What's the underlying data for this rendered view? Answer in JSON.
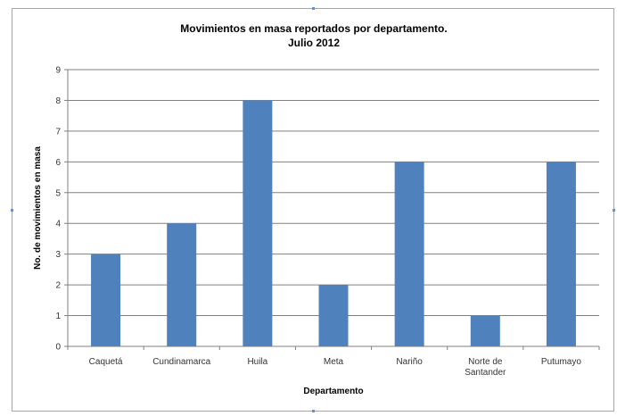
{
  "chart_data": {
    "type": "bar",
    "title": "Movimientos en masa reportados por departamento.",
    "subtitle": "Julio 2012",
    "xlabel": "Departamento",
    "ylabel": "No. de movimientos en masa",
    "categories": [
      "Caquetá",
      "Cundinamarca",
      "Huila",
      "Meta",
      "Nariño",
      "Norte de Santander",
      "Putumayo"
    ],
    "category_lines": [
      [
        "Caquetá"
      ],
      [
        "Cundinamarca"
      ],
      [
        "Huila"
      ],
      [
        "Meta"
      ],
      [
        "Nariño"
      ],
      [
        "Norte de",
        "Santander"
      ],
      [
        "Putumayo"
      ]
    ],
    "values": [
      3,
      4,
      8,
      2,
      6,
      1,
      6
    ],
    "ylim": [
      0,
      9
    ],
    "yticks": [
      0,
      1,
      2,
      3,
      4,
      5,
      6,
      7,
      8,
      9
    ],
    "grid": true,
    "legend": "none",
    "bar_color": "#4f81bd",
    "grid_color": "#808080"
  }
}
